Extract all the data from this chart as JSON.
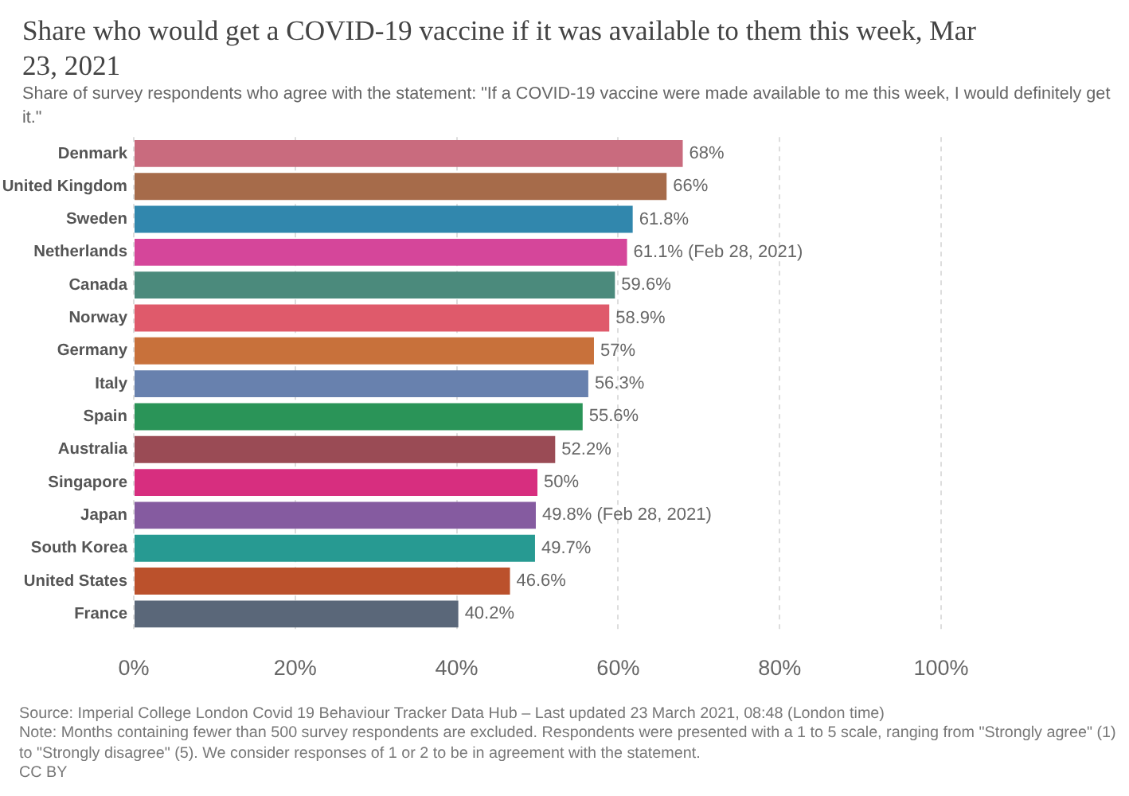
{
  "chart_data": {
    "type": "bar",
    "orientation": "horizontal",
    "title": "Share who would get a COVID-19 vaccine if it was available to them this week, Mar 23, 2021",
    "subtitle": "Share of survey respondents who agree with the statement: \"If a COVID-19 vaccine were made available to me this week, I would definitely get it.\"",
    "categories": [
      "Denmark",
      "United Kingdom",
      "Sweden",
      "Netherlands",
      "Canada",
      "Norway",
      "Germany",
      "Italy",
      "Spain",
      "Australia",
      "Singapore",
      "Japan",
      "South Korea",
      "United States",
      "France"
    ],
    "values": [
      68,
      66,
      61.8,
      61.1,
      59.6,
      58.9,
      57,
      56.3,
      55.6,
      52.2,
      50,
      49.8,
      49.7,
      46.6,
      40.2
    ],
    "colors": [
      "#c96b7e",
      "#a66b4a",
      "#3187ad",
      "#d5469a",
      "#4b8a7c",
      "#df5a6b",
      "#c8713b",
      "#6881ae",
      "#2a9458",
      "#9a4b55",
      "#d72e7f",
      "#855ba0",
      "#279a92",
      "#bb512c",
      "#5a6779"
    ],
    "value_labels": [
      "68%",
      "66%",
      "61.8%",
      "61.1% (Feb 28, 2021)",
      "59.6%",
      "58.9%",
      "57%",
      "56.3%",
      "55.6%",
      "52.2%",
      "50%",
      "49.8% (Feb 28, 2021)",
      "49.7%",
      "46.6%",
      "40.2%"
    ],
    "xlim": [
      0,
      100
    ],
    "xticks": [
      {
        "value": 0,
        "label": "0%"
      },
      {
        "value": 20,
        "label": "20%"
      },
      {
        "value": 40,
        "label": "40%"
      },
      {
        "value": 60,
        "label": "60%"
      },
      {
        "value": 80,
        "label": "80%"
      },
      {
        "value": 100,
        "label": "100%"
      }
    ],
    "grid": "x",
    "annotations": [
      "Source: Imperial College London Covid 19 Behaviour Tracker Data Hub – Last updated 23 March 2021, 08:48 (London time)",
      "Note: Months containing fewer than 500 survey respondents are excluded. Respondents were presented with a 1 to 5 scale, ranging from \"Strongly agree\" (1) to \"Strongly disagree\" (5). We consider responses of 1 or 2 to be in agreement with the statement.",
      "CC BY"
    ]
  }
}
